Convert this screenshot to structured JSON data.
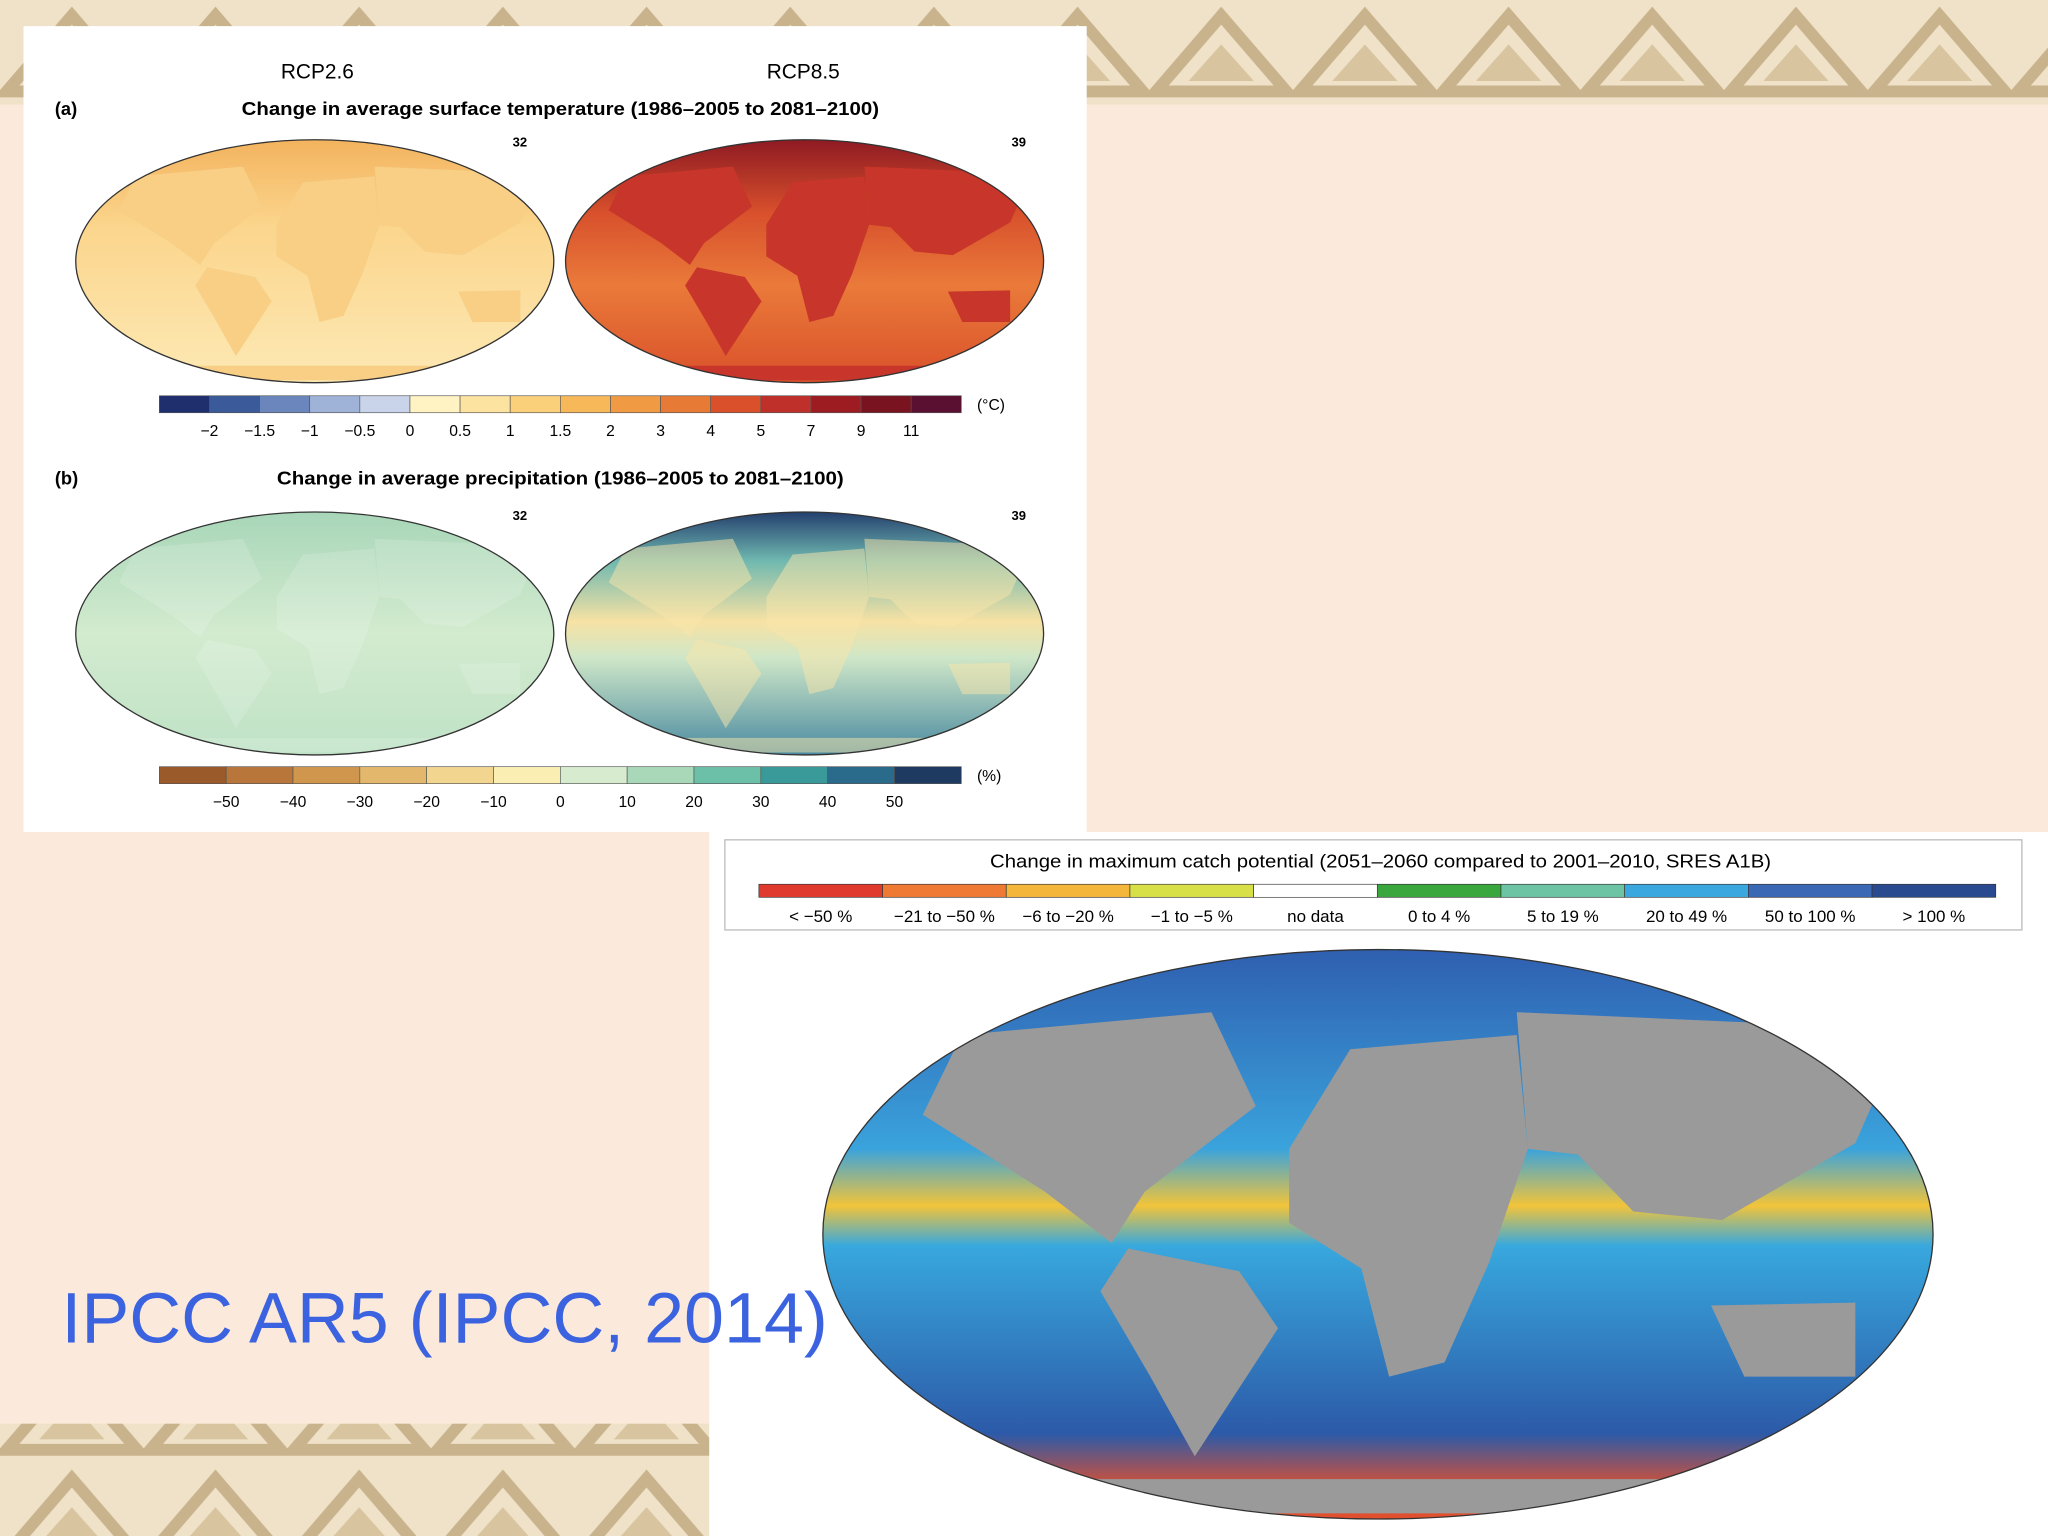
{
  "panel_a": {
    "label": "(a)",
    "title": "Change in average surface temperature (1986–2005 to 2081–2100)",
    "scenarios": [
      "RCP2.6",
      "RCP8.5"
    ],
    "model_counts": [
      "32",
      "39"
    ],
    "colorbar": {
      "ticks": [
        "−2",
        "−1.5",
        "−1",
        "−0.5",
        "0",
        "0.5",
        "1",
        "1.5",
        "2",
        "3",
        "4",
        "5",
        "7",
        "9",
        "11"
      ],
      "unit": "(°C)"
    }
  },
  "panel_b": {
    "label": "(b)",
    "title": "Change in average precipitation (1986–2005 to 2081–2100)",
    "model_counts": [
      "32",
      "39"
    ],
    "colorbar": {
      "ticks": [
        "−50",
        "−40",
        "−30",
        "−20",
        "−10",
        "0",
        "10",
        "20",
        "30",
        "40",
        "50"
      ],
      "unit": "(%)"
    }
  },
  "catch_map": {
    "title": "Change in maximum catch potential (2051–2060 compared to 2001–2010, SRES A1B)",
    "legend": [
      "< −50 %",
      "−21 to −50 %",
      "−6 to −20 %",
      "−1 to −5 %",
      "no data",
      "0 to 4 %",
      "5 to 19 %",
      "20 to 49 %",
      "50 to 100 %",
      "> 100 %"
    ]
  },
  "caption": "IPCC AR5 (IPCC, 2014)"
}
